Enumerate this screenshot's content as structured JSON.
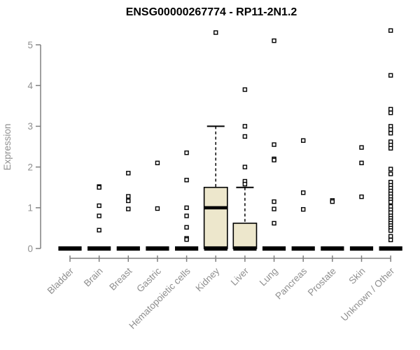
{
  "chart_data": {
    "type": "box",
    "title": "ENSG00000267774 - RP11-2N1.2",
    "ylabel": "Expression",
    "xlabel": "",
    "ylim": [
      0,
      5.5
    ],
    "yticks": [
      0,
      1,
      2,
      3,
      4,
      5
    ],
    "grid": false,
    "x_label_rotation": -45,
    "categories": [
      "Bladder",
      "Brain",
      "Breast",
      "Gastric",
      "Hematopoietic cells",
      "Kidney",
      "Liver",
      "Lung",
      "Pancreas",
      "Prostate",
      "Skin",
      "Unknown / Other"
    ],
    "boxes": [
      {
        "category": "Bladder",
        "median": 0,
        "q1": 0,
        "q3": 0,
        "whisker_low": 0,
        "whisker_high": 0,
        "outliers": []
      },
      {
        "category": "Brain",
        "median": 0,
        "q1": 0,
        "q3": 0,
        "whisker_low": 0,
        "whisker_high": 0,
        "outliers": [
          1.52,
          1.5,
          1.05,
          0.8,
          0.45
        ]
      },
      {
        "category": "Breast",
        "median": 0,
        "q1": 0,
        "q3": 0,
        "whisker_low": 0,
        "whisker_high": 0,
        "outliers": [
          1.85,
          1.28,
          1.17,
          0.97
        ]
      },
      {
        "category": "Gastric",
        "median": 0,
        "q1": 0,
        "q3": 0,
        "whisker_low": 0,
        "whisker_high": 0,
        "outliers": [
          2.1,
          0.98
        ]
      },
      {
        "category": "Hematopoietic cells",
        "median": 0,
        "q1": 0,
        "q3": 0,
        "whisker_low": 0,
        "whisker_high": 0,
        "outliers": [
          2.35,
          1.68,
          1.0,
          0.8,
          0.52,
          0.25,
          0.22
        ]
      },
      {
        "category": "Kidney",
        "median": 1.0,
        "q1": 0,
        "q3": 1.5,
        "whisker_low": 0,
        "whisker_high": 3.0,
        "outliers": [
          5.3
        ]
      },
      {
        "category": "Liver",
        "median": 0.03,
        "q1": 0,
        "q3": 0.62,
        "whisker_low": 0,
        "whisker_high": 1.5,
        "outliers": [
          3.9,
          3.0,
          2.75,
          2.0,
          1.65,
          1.58
        ]
      },
      {
        "category": "Lung",
        "median": 0,
        "q1": 0,
        "q3": 0,
        "whisker_low": 0,
        "whisker_high": 0,
        "outliers": [
          5.1,
          2.55,
          2.2,
          2.17,
          1.15,
          0.97,
          0.62
        ]
      },
      {
        "category": "Pancreas",
        "median": 0,
        "q1": 0,
        "q3": 0,
        "whisker_low": 0,
        "whisker_high": 0,
        "outliers": [
          2.65,
          1.37,
          0.96
        ]
      },
      {
        "category": "Prostate",
        "median": 0,
        "q1": 0,
        "q3": 0,
        "whisker_low": 0,
        "whisker_high": 0,
        "outliers": [
          1.18,
          1.15
        ]
      },
      {
        "category": "Skin",
        "median": 0,
        "q1": 0,
        "q3": 0,
        "whisker_low": 0,
        "whisker_high": 0,
        "outliers": [
          2.48,
          2.1,
          1.27
        ]
      },
      {
        "category": "Unknown / Other",
        "median": 0,
        "q1": 0,
        "q3": 0,
        "whisker_low": 0,
        "whisker_high": 0,
        "outliers": [
          5.35,
          4.25,
          3.42,
          3.33,
          3.0,
          2.92,
          2.83,
          2.62,
          2.54,
          2.46,
          1.95,
          1.83,
          1.63,
          1.55,
          1.48,
          1.41,
          1.34,
          1.27,
          1.2,
          1.14,
          1.03,
          0.95,
          0.88,
          0.8,
          0.74,
          0.68,
          0.62,
          0.56,
          0.5,
          0.44,
          0.3,
          0.21
        ]
      }
    ],
    "colors": {
      "box_fill": "#EDE7CC",
      "box_stroke": "#000000",
      "median": "#000000",
      "zero_bar": "#000000",
      "outlier_stroke": "#000000",
      "outlier_fill": "#ffffff",
      "axis": "#808080",
      "tick_label": "#8f8f8f",
      "title": "#000000"
    }
  }
}
